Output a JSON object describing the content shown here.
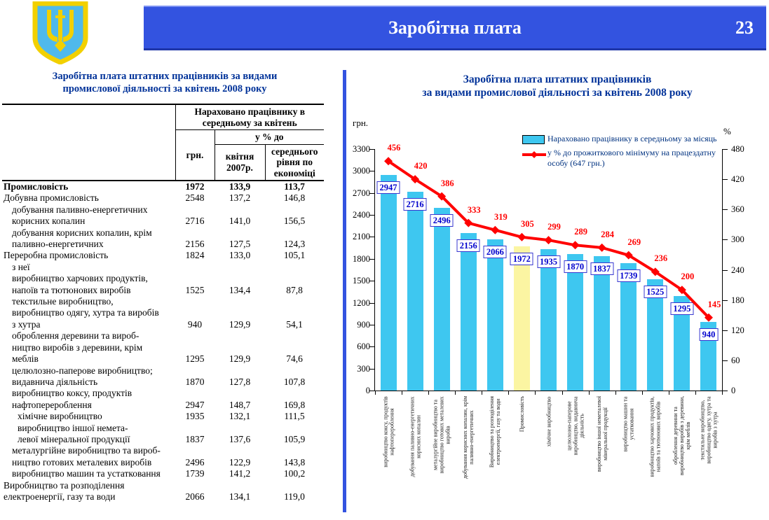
{
  "header": {
    "title": "Заробітна плата",
    "page_number": "23"
  },
  "left_panel": {
    "table_title": "Заробітна плата штатних працівників за видами\nпромислової діяльності  за квітень 2008 року",
    "table": {
      "col_group": "Нараховано працівнику в середньому за квітень",
      "col_uah": "грн.",
      "col_pct_group": "у % до",
      "col_pct_2007": "квітня 2007р.",
      "col_pct_avg": "середнього рівня по економіці",
      "rows": [
        {
          "label": "Промисловість",
          "uah": "1972",
          "pct2007": "133,9",
          "pctavg": "113,7",
          "bold": true,
          "indent": 0
        },
        {
          "label": "Добувна промисловість",
          "uah": "2548",
          "pct2007": "137,2",
          "pctavg": "146,8",
          "indent": 0
        },
        {
          "label": "добування паливно-енергетичних\nкорисних копалин",
          "uah": "2716",
          "pct2007": "141,0",
          "pctavg": "156,5",
          "indent": 1
        },
        {
          "label": "добування корисних копалин, крім\nпаливно-енергетичних",
          "uah": "2156",
          "pct2007": "127,5",
          "pctavg": "124,3",
          "indent": 1
        },
        {
          "label": "Переробна промисловість",
          "uah": "1824",
          "pct2007": "133,0",
          "pctavg": "105,1",
          "indent": 0
        },
        {
          "label": "з неї",
          "uah": "",
          "pct2007": "",
          "pctavg": "",
          "indent": 1
        },
        {
          "label": "виробництво харчових продуктів,\nнапоїв та тютюнових виробів",
          "uah": "1525",
          "pct2007": "134,4",
          "pctavg": "87,8",
          "indent": 1
        },
        {
          "label": "текстильне виробництво,\nвиробництво одягу, хутра та виробів\nз хутра",
          "uah": "940",
          "pct2007": "129,9",
          "pctavg": "54,1",
          "indent": 1
        },
        {
          "label": "оброблення деревини та вироб-\nництво виробів з деревини, крім\nмеблів",
          "uah": "1295",
          "pct2007": "129,9",
          "pctavg": "74,6",
          "indent": 1
        },
        {
          "label": "целюлозно-паперове виробництво;\nвидавнича діяльність",
          "uah": "1870",
          "pct2007": "127,8",
          "pctavg": "107,8",
          "indent": 1
        },
        {
          "label": "виробництво коксу, продуктів\nнафтоперероблення",
          "uah": "2947",
          "pct2007": "148,7",
          "pctavg": "169,8",
          "indent": 1
        },
        {
          "label": "хімічне виробництво",
          "uah": "1935",
          "pct2007": "132,1",
          "pctavg": "111,5",
          "indent": 2
        },
        {
          "label": "виробництво іншої немета-\nлевої мінеральної продукції",
          "uah": "1837",
          "pct2007": "137,6",
          "pctavg": "105,9",
          "indent": 2
        },
        {
          "label": "металургійне виробництво та вироб-\nництво готових металевих виробів",
          "uah": "2496",
          "pct2007": "122,9",
          "pctavg": "143,8",
          "indent": 1
        },
        {
          "label": "виробництво машин та устатковання",
          "uah": "1739",
          "pct2007": "141,2",
          "pctavg": "100,2",
          "indent": 1
        },
        {
          "label": "Виробництво та розподілення\nелектроенергії, газу та води",
          "uah": "2066",
          "pct2007": "134,1",
          "pctavg": "119,0",
          "indent": 0
        }
      ]
    }
  },
  "chart_data": {
    "type": "bar",
    "title": "Заробітна плата штатних працівників\nза видами промислової діяльності за квітень 2008 року",
    "left_axis": {
      "label": "грн.",
      "min": 0,
      "max": 3300,
      "step": 300
    },
    "right_axis": {
      "label": "%",
      "min": 0,
      "max": 480,
      "step": 60
    },
    "legend": [
      {
        "marker": "bar",
        "label": "Нараховано працівнику в середньому за місяць"
      },
      {
        "marker": "line",
        "label": "у % до прожиткового мінімуму на працездатну особу (647 грн.)"
      }
    ],
    "categories": [
      "виробництво коксу, продуктів\nнафтоперероблення",
      "добування паливно-енергетичних\nкорисних копалин",
      "металургійне виробництво та\nвиробництво готових металевих\nвиробів",
      "добування корисних копалин, крім\nпаливно-енергетичних",
      "Виробництво та розподілення\nелектроенергії, газу та води",
      "Промисловість",
      "хімічне виробництво",
      "целюлозно-паперове\nвиробництво, видавнича\nдіяльність",
      "виробництво іншої неметалевої\nмінеральної продукції",
      "виробництво машин та\nустатковання",
      "виробництво харчових продуктів,\nнапоїв та тютюнових виробів",
      "оброблення деревини та\nвиробництво виробів з деревини,\nкрім меблів",
      "текстильне виробництво,\nвиробництво одягу, хутра та\nвиробів з хутра"
    ],
    "series": [
      {
        "name": "Нараховано працівнику в середньому за місяць",
        "type": "bar",
        "axis": "left",
        "values": [
          2947,
          2716,
          2496,
          2156,
          2066,
          1972,
          1935,
          1870,
          1837,
          1739,
          1525,
          1295,
          940
        ]
      },
      {
        "name": "у % до прожиткового мінімуму на працездатну особу (647 грн.)",
        "type": "line",
        "axis": "right",
        "values": [
          456,
          420,
          386,
          333,
          319,
          305,
          299,
          289,
          284,
          269,
          236,
          200,
          145
        ]
      }
    ],
    "highlight_index": 5,
    "colors": {
      "bar": "#3ec7f0",
      "highlight": "#fbf5a2",
      "line": "#ff0000",
      "value_label": "#0000cd"
    },
    "grid": false,
    "legend_position": "top-right"
  }
}
